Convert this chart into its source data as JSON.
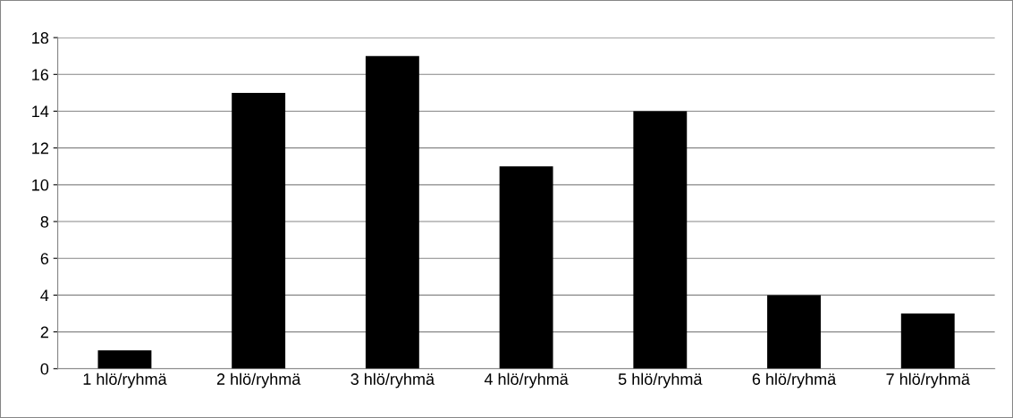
{
  "chart_data": {
    "type": "bar",
    "categories": [
      "1 hlö/ryhmä",
      "2 hlö/ryhmä",
      "3 hlö/ryhmä",
      "4 hlö/ryhmä",
      "5 hlö/ryhmä",
      "6 hlö/ryhmä",
      "7 hlö/ryhmä"
    ],
    "values": [
      1,
      15,
      17,
      11,
      14,
      4,
      3
    ],
    "color": "#000000",
    "ylim": [
      0,
      18
    ],
    "yticks": [
      0,
      2,
      4,
      6,
      8,
      10,
      12,
      14,
      16,
      18
    ],
    "grid": "y",
    "legend": false
  }
}
